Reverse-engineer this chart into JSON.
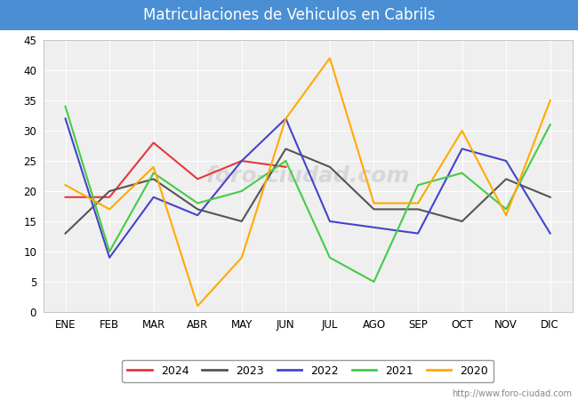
{
  "title": "Matriculaciones de Vehiculos en Cabrils",
  "title_bg_color": "#4a8fd4",
  "title_text_color": "#ffffff",
  "months": [
    "ENE",
    "FEB",
    "MAR",
    "ABR",
    "MAY",
    "JUN",
    "JUL",
    "AGO",
    "SEP",
    "OCT",
    "NOV",
    "DIC"
  ],
  "series": {
    "2024": {
      "color": "#e8373a",
      "data": [
        19,
        19,
        28,
        22,
        25,
        24,
        null,
        null,
        null,
        null,
        null,
        null
      ]
    },
    "2023": {
      "color": "#555555",
      "data": [
        13,
        20,
        22,
        17,
        15,
        27,
        24,
        17,
        17,
        15,
        22,
        19
      ]
    },
    "2022": {
      "color": "#4444cc",
      "data": [
        32,
        9,
        19,
        16,
        25,
        32,
        15,
        14,
        13,
        27,
        25,
        13
      ]
    },
    "2021": {
      "color": "#44cc44",
      "data": [
        34,
        10,
        23,
        18,
        20,
        25,
        9,
        5,
        21,
        23,
        17,
        31
      ]
    },
    "2020": {
      "color": "#ffaa00",
      "data": [
        21,
        17,
        24,
        1,
        9,
        32,
        42,
        18,
        18,
        30,
        16,
        35
      ]
    }
  },
  "ylim": [
    0,
    45
  ],
  "yticks": [
    0,
    5,
    10,
    15,
    20,
    25,
    30,
    35,
    40,
    45
  ],
  "plot_bg_color": "#efefef",
  "figure_bg_color": "#ffffff",
  "grid_color": "#ffffff",
  "url_text": "http://www.foro-ciudad.com",
  "watermark": "foro-ciudad.com",
  "title_fontsize": 12,
  "tick_fontsize": 8.5,
  "legend_fontsize": 9
}
